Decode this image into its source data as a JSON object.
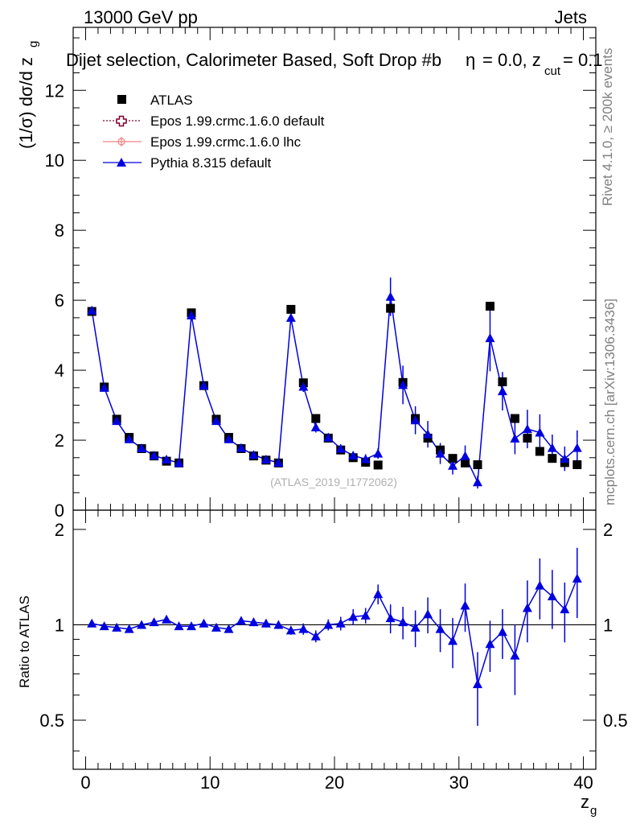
{
  "header": {
    "left": "13000 GeV pp",
    "right": "Jets",
    "title_main": "Dijet selection, Calorimeter Based, Soft Drop #b",
    "title_eq": "= 0.0, z",
    "title_sub": "cut",
    "title_end": " = 0.1",
    "beta_symbol": "η"
  },
  "side": {
    "rivet": "Rivet 4.1.0, ≥ 200k events",
    "mcplots": "mcplots.cern.ch [arXiv:1306.3436]"
  },
  "watermark": "(ATLAS_2019_I1772062)",
  "colors": {
    "atlas": "#000000",
    "epos_default": "#7f0029",
    "epos_lhc": "#f08080",
    "pythia": "#0000e0"
  },
  "chart_data": [
    {
      "type": "scatter",
      "title": "Dijet selection, Calorimeter Based, Soft Drop #b = 0.0, z_cut = 0.1",
      "xlabel": "z_g",
      "ylabel": "(1/σ) dσ/d z_g",
      "xlim": [
        -1,
        41
      ],
      "ylim": [
        0,
        13.8
      ],
      "yticks": [
        0,
        2,
        4,
        6,
        8,
        10,
        12
      ],
      "ytick_labels": [
        "0",
        "2",
        "4",
        "6",
        "8",
        "10",
        "12"
      ],
      "legend_position": "top-left",
      "legend": [
        "ATLAS",
        "Epos 1.99.crmc.1.6.0 default",
        "Epos 1.99.crmc.1.6.0 lhc",
        "Pythia 8.315 default"
      ],
      "x": [
        0.5,
        1.5,
        2.5,
        3.5,
        4.5,
        5.5,
        6.5,
        7.5,
        8.5,
        9.5,
        10.5,
        11.5,
        12.5,
        13.5,
        14.5,
        15.5,
        16.5,
        17.5,
        18.5,
        19.5,
        20.5,
        21.5,
        22.5,
        23.5,
        24.5,
        25.5,
        26.5,
        27.5,
        28.5,
        29.5,
        30.5,
        31.5,
        32.5,
        33.5,
        34.5,
        35.5,
        36.5,
        37.5,
        38.5,
        39.5
      ],
      "series": [
        {
          "name": "ATLAS",
          "values": [
            5.68,
            3.52,
            2.6,
            2.08,
            1.76,
            1.55,
            1.4,
            1.35,
            5.64,
            3.56,
            2.6,
            2.08,
            1.76,
            1.55,
            1.43,
            1.35,
            5.74,
            3.64,
            2.62,
            2.06,
            1.72,
            1.5,
            1.37,
            1.29,
            5.77,
            3.65,
            2.62,
            2.06,
            1.72,
            1.48,
            1.35,
            1.3,
            5.83,
            3.67,
            2.62,
            2.06,
            1.68,
            1.48,
            1.36,
            1.3
          ]
        },
        {
          "name": "Pythia 8.315 default",
          "values": [
            5.71,
            3.5,
            2.55,
            2.03,
            1.77,
            1.56,
            1.45,
            1.35,
            5.57,
            3.56,
            2.55,
            2.03,
            1.78,
            1.58,
            1.45,
            1.36,
            5.5,
            3.53,
            2.37,
            2.08,
            1.76,
            1.56,
            1.46,
            1.62,
            6.1,
            3.58,
            2.57,
            2.17,
            1.62,
            1.27,
            1.55,
            0.8,
            4.92,
            3.4,
            2.05,
            2.32,
            2.22,
            1.78,
            1.47,
            1.78
          ],
          "errors": [
            0.1,
            0.08,
            0.06,
            0.05,
            0.05,
            0.05,
            0.05,
            0.05,
            0.1,
            0.08,
            0.07,
            0.06,
            0.06,
            0.06,
            0.06,
            0.06,
            0.15,
            0.15,
            0.15,
            0.12,
            0.12,
            0.12,
            0.14,
            0.15,
            0.55,
            0.55,
            0.4,
            0.38,
            0.3,
            0.25,
            0.3,
            0.18,
            0.95,
            0.55,
            0.45,
            0.55,
            0.52,
            0.38,
            0.35,
            0.5
          ]
        }
      ]
    },
    {
      "type": "line",
      "ylabel": "Ratio to ATLAS",
      "xlabel": "z_g",
      "xlim": [
        -1,
        41
      ],
      "ylim": [
        0.35,
        2.3
      ],
      "yticks": [
        0.5,
        1,
        2
      ],
      "ytick_labels": [
        "0.5",
        "1",
        "2"
      ],
      "xticks": [
        0,
        10,
        20,
        30,
        40
      ],
      "xtick_labels": [
        "0",
        "10",
        "20",
        "30",
        "40"
      ],
      "reference_line": 1,
      "series": [
        {
          "name": "Pythia 8.315 / ATLAS",
          "values": [
            1.01,
            0.99,
            0.98,
            0.97,
            1.0,
            1.02,
            1.04,
            0.99,
            0.99,
            1.01,
            0.98,
            0.97,
            1.03,
            1.02,
            1.01,
            1.0,
            0.96,
            0.97,
            0.92,
            1.0,
            1.01,
            1.06,
            1.07,
            1.25,
            1.05,
            1.02,
            0.98,
            1.08,
            0.97,
            0.89,
            1.15,
            0.65,
            0.87,
            0.95,
            0.8,
            1.13,
            1.33,
            1.23,
            1.12,
            1.4
          ],
          "errors": [
            0.02,
            0.02,
            0.02,
            0.02,
            0.02,
            0.02,
            0.02,
            0.02,
            0.02,
            0.02,
            0.02,
            0.02,
            0.02,
            0.03,
            0.03,
            0.03,
            0.03,
            0.04,
            0.04,
            0.04,
            0.05,
            0.06,
            0.06,
            0.09,
            0.11,
            0.12,
            0.13,
            0.14,
            0.15,
            0.16,
            0.2,
            0.17,
            0.16,
            0.17,
            0.2,
            0.25,
            0.29,
            0.26,
            0.24,
            0.35
          ]
        }
      ]
    }
  ]
}
